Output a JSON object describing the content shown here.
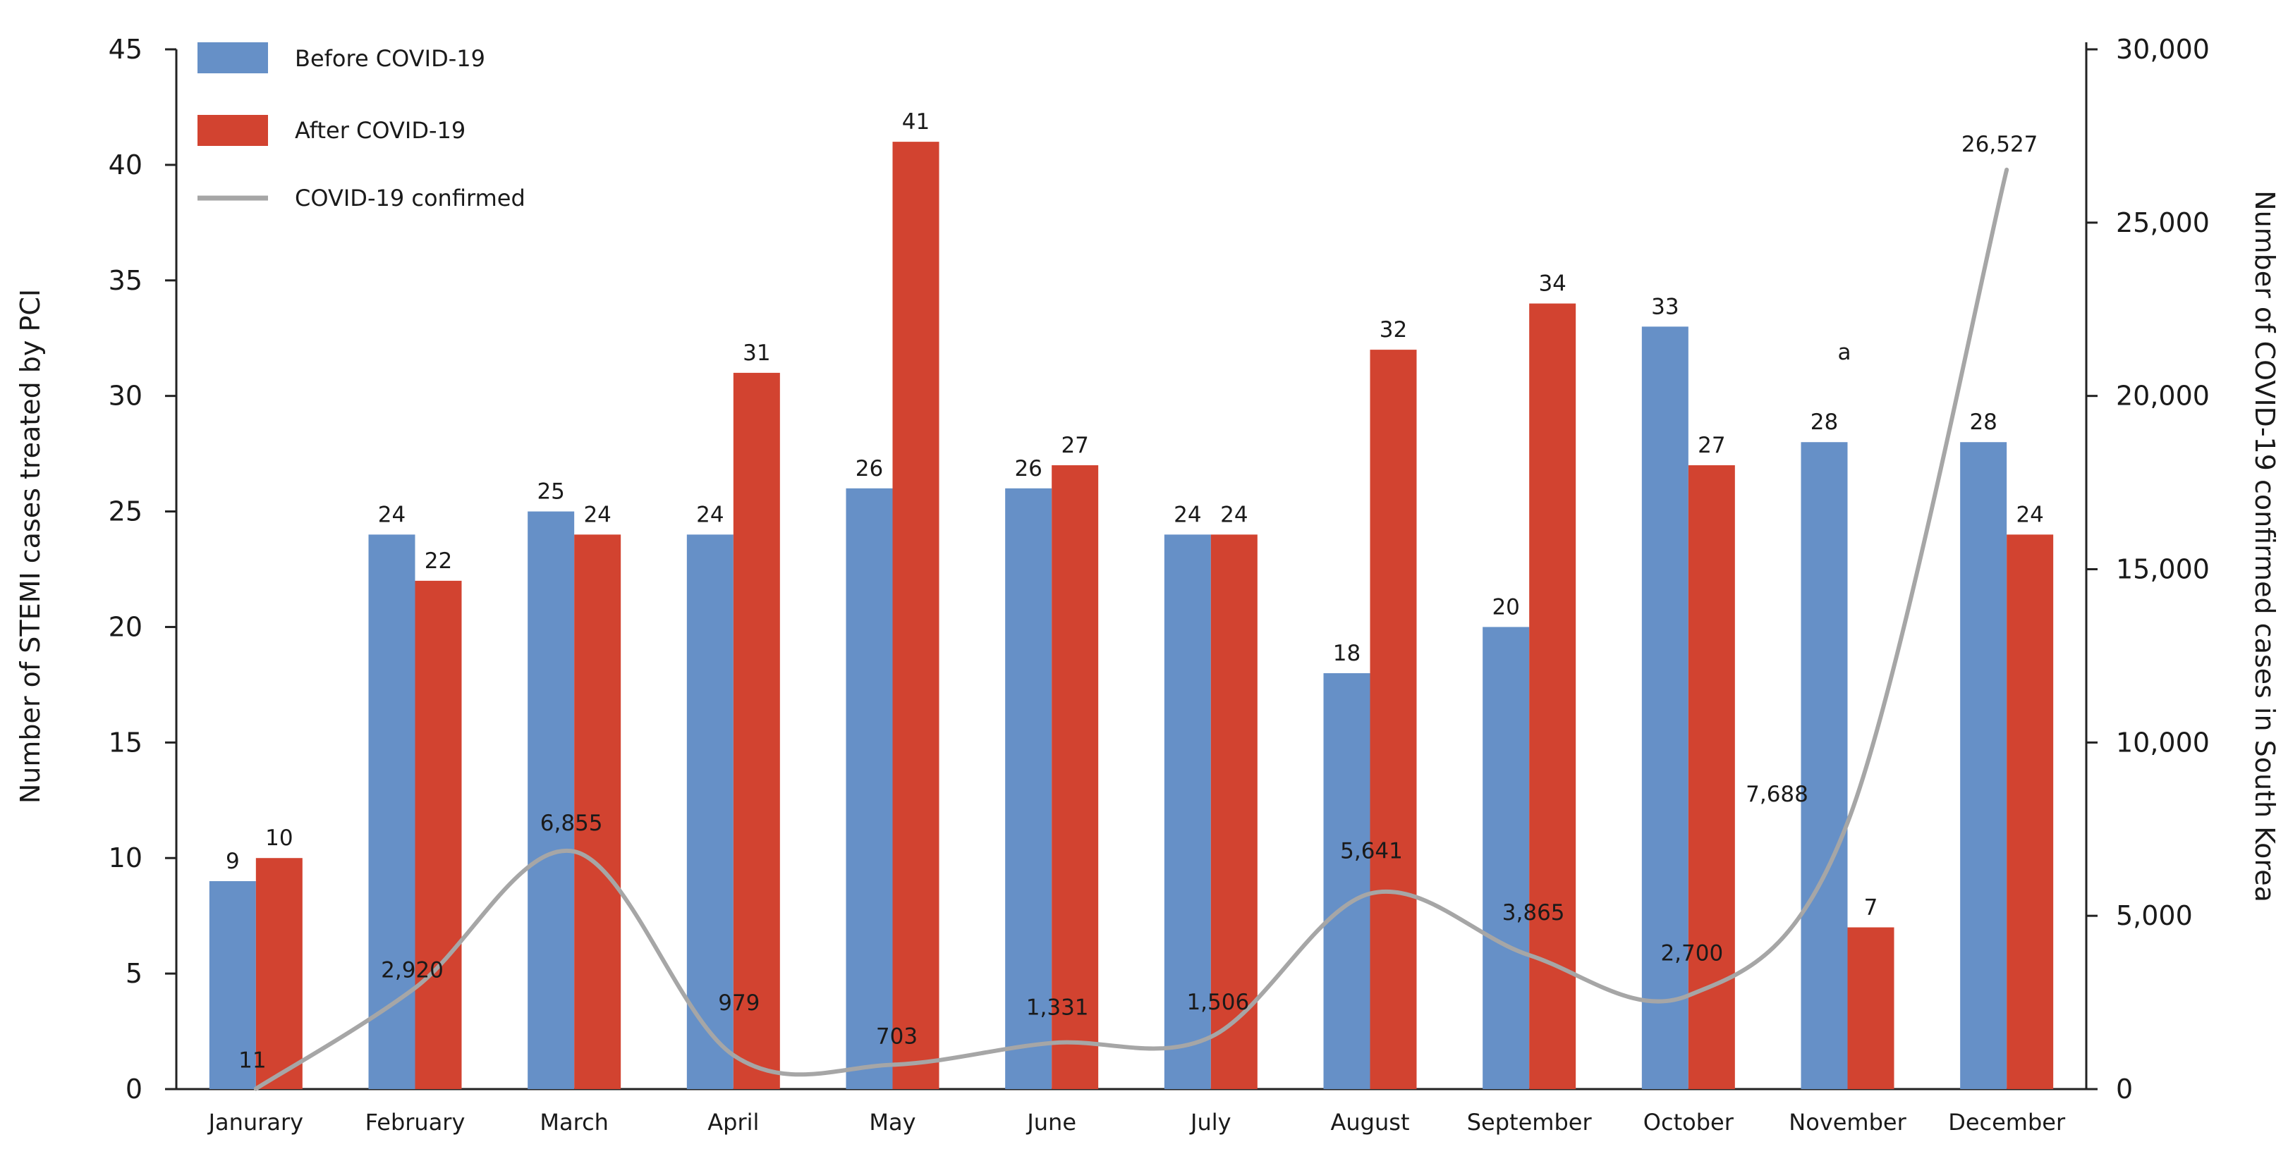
{
  "chart_data": {
    "type": "bar",
    "categories": [
      "Janurary",
      "February",
      "March",
      "April",
      "May",
      "June",
      "July",
      "August",
      "September",
      "October",
      "November",
      "December"
    ],
    "series": [
      {
        "name": "Before COVID-19",
        "type": "bar",
        "axis": "left",
        "color": "#6690c7",
        "values": [
          9,
          24,
          25,
          24,
          26,
          26,
          24,
          18,
          20,
          33,
          28,
          28
        ]
      },
      {
        "name": "After COVID-19",
        "type": "bar",
        "axis": "left",
        "color": "#d24330",
        "values": [
          10,
          22,
          24,
          31,
          41,
          27,
          24,
          32,
          34,
          27,
          7,
          24
        ]
      },
      {
        "name": "COVID-19  confirmed",
        "type": "line",
        "axis": "right",
        "color": "#a6a6a6",
        "values": [
          11,
          2920,
          6855,
          979,
          703,
          1331,
          1506,
          5641,
          3865,
          2700,
          7688,
          26527
        ]
      }
    ],
    "bar_labels": {
      "before": [
        "9",
        "24",
        "25",
        "24",
        "26",
        "26",
        "24",
        "18",
        "20",
        "33",
        "28",
        "28"
      ],
      "after": [
        "10",
        "22",
        "24",
        "31",
        "41",
        "27",
        "24",
        "32",
        "34",
        "27",
        "7",
        "24"
      ]
    },
    "line_labels": [
      "11",
      "2,920",
      "6,855",
      "979",
      "703",
      "1,331",
      "1,506",
      "5,641",
      "3,865",
      "2,700",
      "7,688",
      "26,527"
    ],
    "annotation": "a",
    "ylabel": "Number of STEMI cases treated by PCI",
    "y2label": "Number of COVID-19 confirmed cases in South Korea",
    "ylim": [
      0,
      45
    ],
    "y2lim": [
      0,
      30000
    ],
    "yticks": [
      "0",
      "5",
      "10",
      "15",
      "20",
      "25",
      "30",
      "35",
      "40",
      "45"
    ],
    "y2ticks": [
      "0",
      "5,000",
      "10,000",
      "15,000",
      "20,000",
      "25,000",
      "30,000"
    ],
    "legend_position": "top-left",
    "grid": false
  }
}
